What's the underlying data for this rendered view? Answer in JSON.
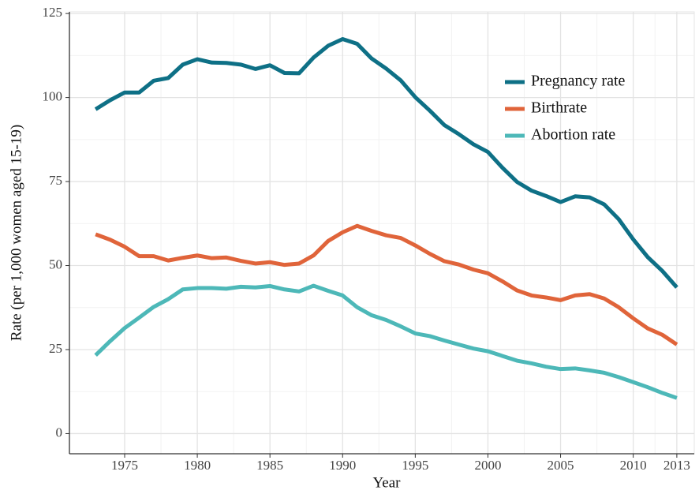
{
  "chart_data": {
    "type": "line",
    "x_label": "Year",
    "y_label": "Rate (per 1,000 women aged 15-19)",
    "x": [
      1973,
      1974,
      1975,
      1976,
      1977,
      1978,
      1979,
      1980,
      1981,
      1982,
      1983,
      1984,
      1985,
      1986,
      1987,
      1988,
      1989,
      1990,
      1991,
      1992,
      1993,
      1994,
      1995,
      1996,
      1997,
      1998,
      1999,
      2000,
      2001,
      2002,
      2003,
      2004,
      2005,
      2006,
      2007,
      2008,
      2009,
      2010,
      2011,
      2012,
      2013
    ],
    "series": [
      {
        "name": "Pregnancy rate",
        "color": "#0e7086",
        "values": [
          96.5,
          99.2,
          101.5,
          101.5,
          105,
          105.8,
          109.8,
          111.4,
          110.4,
          110.3,
          109.8,
          108.5,
          109.6,
          107.3,
          107.2,
          111.9,
          115.4,
          117.4,
          116,
          111.6,
          108.6,
          105.1,
          100.1,
          96.1,
          91.8,
          89.1,
          86.1,
          83.8,
          79.1,
          74.9,
          72.3,
          70.7,
          68.9,
          70.6,
          70.3,
          68.2,
          63.8,
          57.8,
          52.5,
          48.4,
          43.5
        ]
      },
      {
        "name": "Birthrate",
        "color": "#e0643a",
        "values": [
          59.3,
          57.7,
          55.6,
          52.8,
          52.8,
          51.5,
          52.3,
          53,
          52.2,
          52.4,
          51.4,
          50.6,
          51,
          50.2,
          50.6,
          53,
          57.3,
          59.9,
          61.8,
          60.3,
          59,
          58.2,
          56,
          53.5,
          51.3,
          50.3,
          48.8,
          47.7,
          45.3,
          42.6,
          41.1,
          40.5,
          39.7,
          41.1,
          41.5,
          40.2,
          37.6,
          34.3,
          31.3,
          29.4,
          26.5
        ]
      },
      {
        "name": "Abortion rate",
        "color": "#4db8b8",
        "values": [
          23.3,
          27.5,
          31.4,
          34.5,
          37.7,
          40,
          42.9,
          43.3,
          43.3,
          43.1,
          43.7,
          43.5,
          43.9,
          42.9,
          42.3,
          44,
          42.5,
          41.1,
          37.6,
          35.2,
          33.8,
          31.9,
          29.8,
          29,
          27.7,
          26.5,
          25.3,
          24.5,
          23.1,
          21.7,
          20.9,
          19.9,
          19.2,
          19.4,
          18.8,
          18.1,
          16.8,
          15.3,
          13.8,
          12.1,
          10.6
        ]
      }
    ],
    "xlim": [
      1971.2,
      2014.2
    ],
    "xticks": [
      1975,
      1980,
      1985,
      1990,
      1995,
      2000,
      2005,
      2010,
      2013
    ],
    "ylim": [
      -6,
      125.5
    ],
    "yticks": [
      0,
      25,
      50,
      75,
      100,
      125
    ],
    "grid": true,
    "legend": "top-right"
  }
}
